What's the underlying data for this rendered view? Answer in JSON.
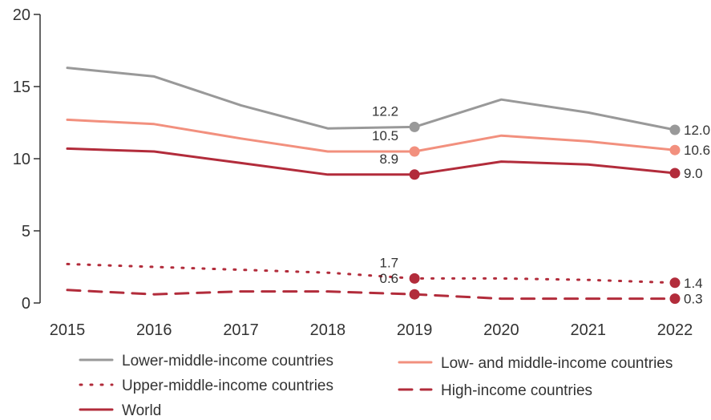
{
  "chart_data": {
    "type": "line",
    "x": [
      2015,
      2016,
      2017,
      2018,
      2019,
      2020,
      2021,
      2022
    ],
    "ylim": [
      0,
      20
    ],
    "yticks": [
      0,
      5,
      10,
      15,
      20
    ],
    "title": "",
    "xlabel": "",
    "ylabel": "",
    "grid": false,
    "legend_position": "bottom",
    "series": [
      {
        "name": "Lower-middle-income countries",
        "values": [
          16.3,
          15.7,
          13.7,
          12.1,
          12.2,
          14.1,
          13.2,
          12.0
        ],
        "color": "#999999",
        "style": "solid",
        "labels": [
          {
            "x": 2019,
            "text": "12.2"
          },
          {
            "x": 2022,
            "text": "12.0"
          }
        ]
      },
      {
        "name": "Low- and middle-income countries",
        "values": [
          12.7,
          12.4,
          11.4,
          10.5,
          10.5,
          11.6,
          11.2,
          10.6
        ],
        "color": "#F2907E",
        "style": "solid",
        "labels": [
          {
            "x": 2019,
            "text": "10.5"
          },
          {
            "x": 2022,
            "text": "10.6"
          }
        ]
      },
      {
        "name": "World",
        "values": [
          10.7,
          10.5,
          9.7,
          8.9,
          8.9,
          9.8,
          9.6,
          9.0
        ],
        "color": "#B22C3B",
        "style": "solid",
        "labels": [
          {
            "x": 2019,
            "text": "8.9"
          },
          {
            "x": 2022,
            "text": "9.0"
          }
        ]
      },
      {
        "name": "Upper-middle-income countries",
        "values": [
          2.7,
          2.5,
          2.3,
          2.1,
          1.7,
          1.7,
          1.6,
          1.4
        ],
        "color": "#B22C3B",
        "style": "dotted",
        "labels": [
          {
            "x": 2019,
            "text": "1.7"
          },
          {
            "x": 2022,
            "text": "1.4"
          }
        ]
      },
      {
        "name": "High-income countries",
        "values": [
          0.9,
          0.6,
          0.8,
          0.8,
          0.6,
          0.3,
          0.3,
          0.3
        ],
        "color": "#B22C3B",
        "style": "dashed",
        "labels": [
          {
            "x": 2019,
            "text": "0.6"
          },
          {
            "x": 2022,
            "text": "0.3"
          }
        ]
      }
    ],
    "legend_order": [
      "Lower-middle-income countries",
      "Low- and middle-income countries",
      "Upper-middle-income countries",
      "High-income countries",
      "World"
    ]
  }
}
